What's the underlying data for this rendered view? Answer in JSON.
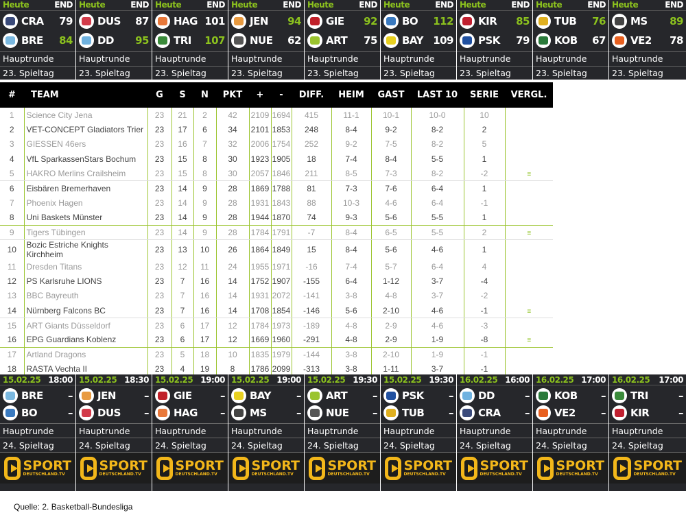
{
  "colors": {
    "accent": "#8cc21e",
    "panel": "#26272b",
    "brand": "#f3b71a"
  },
  "results": [
    {
      "status_left": "Heute",
      "status_right": "END",
      "home": "CRA",
      "home_score": "79",
      "away": "BRE",
      "away_score": "84",
      "winner": "away",
      "round": "Hauptrunde",
      "day": "23. Spieltag",
      "c1": "#3a4a7a",
      "c2": "#7ab8e0"
    },
    {
      "status_left": "Heute",
      "status_right": "END",
      "home": "DUS",
      "home_score": "87",
      "away": "DD",
      "away_score": "95",
      "winner": "away",
      "round": "Hauptrunde",
      "day": "23. Spieltag",
      "c1": "#d23b4a",
      "c2": "#6fb2e0"
    },
    {
      "status_left": "Heute",
      "status_right": "END",
      "home": "HAG",
      "home_score": "101",
      "away": "TRI",
      "away_score": "107",
      "winner": "away",
      "round": "Hauptrunde",
      "day": "23. Spieltag",
      "c1": "#e8783a",
      "c2": "#3a8a3a"
    },
    {
      "status_left": "Heute",
      "status_right": "END",
      "home": "JEN",
      "home_score": "94",
      "away": "NUE",
      "away_score": "62",
      "winner": "home",
      "round": "Hauptrunde",
      "day": "23. Spieltag",
      "c1": "#e89a40",
      "c2": "#555555"
    },
    {
      "status_left": "Heute",
      "status_right": "END",
      "home": "GIE",
      "home_score": "92",
      "away": "ART",
      "away_score": "75",
      "winner": "home",
      "round": "Hauptrunde",
      "day": "23. Spieltag",
      "c1": "#c0202a",
      "c2": "#9bc42e"
    },
    {
      "status_left": "Heute",
      "status_right": "END",
      "home": "BO",
      "home_score": "112",
      "away": "BAY",
      "away_score": "109",
      "winner": "home",
      "round": "Hauptrunde",
      "day": "23. Spieltag",
      "c1": "#3a7ac0",
      "c2": "#e8d020"
    },
    {
      "status_left": "Heute",
      "status_right": "END",
      "home": "KIR",
      "home_score": "85",
      "away": "PSK",
      "away_score": "79",
      "winner": "home",
      "round": "Hauptrunde",
      "day": "23. Spieltag",
      "c1": "#c02030",
      "c2": "#2050a0"
    },
    {
      "status_left": "Heute",
      "status_right": "END",
      "home": "TUB",
      "home_score": "76",
      "away": "KOB",
      "away_score": "67",
      "winner": "home",
      "round": "Hauptrunde",
      "day": "23. Spieltag",
      "c1": "#e0b020",
      "c2": "#2a7a3a"
    },
    {
      "status_left": "Heute",
      "status_right": "END",
      "home": "MS",
      "home_score": "89",
      "away": "VE2",
      "away_score": "78",
      "winner": "home",
      "round": "Hauptrunde",
      "day": "23. Spieltag",
      "c1": "#444444",
      "c2": "#e86020"
    }
  ],
  "fixtures": [
    {
      "date": "15.02.25",
      "time": "18:00",
      "home": "BRE",
      "away": "BO",
      "home_score": "–",
      "away_score": "–",
      "round": "Hauptrunde",
      "day": "24. Spieltag",
      "c1": "#7ab8e0",
      "c2": "#3a7ac0"
    },
    {
      "date": "15.02.25",
      "time": "18:30",
      "home": "JEN",
      "away": "DUS",
      "home_score": "–",
      "away_score": "–",
      "round": "Hauptrunde",
      "day": "24. Spieltag",
      "c1": "#e89a40",
      "c2": "#d23b4a"
    },
    {
      "date": "15.02.25",
      "time": "19:00",
      "home": "GIE",
      "away": "HAG",
      "home_score": "–",
      "away_score": "–",
      "round": "Hauptrunde",
      "day": "24. Spieltag",
      "c1": "#c0202a",
      "c2": "#e8783a"
    },
    {
      "date": "15.02.25",
      "time": "19:00",
      "home": "BAY",
      "away": "MS",
      "home_score": "–",
      "away_score": "–",
      "round": "Hauptrunde",
      "day": "24. Spieltag",
      "c1": "#e8d020",
      "c2": "#444444"
    },
    {
      "date": "15.02.25",
      "time": "19:30",
      "home": "ART",
      "away": "NUE",
      "home_score": "–",
      "away_score": "–",
      "round": "Hauptrunde",
      "day": "24. Spieltag",
      "c1": "#9bc42e",
      "c2": "#555555"
    },
    {
      "date": "15.02.25",
      "time": "19:30",
      "home": "PSK",
      "away": "TUB",
      "home_score": "–",
      "away_score": "–",
      "round": "Hauptrunde",
      "day": "24. Spieltag",
      "c1": "#2050a0",
      "c2": "#e0b020"
    },
    {
      "date": "16.02.25",
      "time": "16:00",
      "home": "DD",
      "away": "CRA",
      "home_score": "–",
      "away_score": "–",
      "round": "Hauptrunde",
      "day": "24. Spieltag",
      "c1": "#6fb2e0",
      "c2": "#3a4a7a"
    },
    {
      "date": "16.02.25",
      "time": "17:00",
      "home": "KOB",
      "away": "VE2",
      "home_score": "–",
      "away_score": "–",
      "round": "Hauptrunde",
      "day": "24. Spieltag",
      "c1": "#2a7a3a",
      "c2": "#e86020"
    },
    {
      "date": "16.02.25",
      "time": "17:00",
      "home": "TRI",
      "away": "KIR",
      "home_score": "–",
      "away_score": "–",
      "round": "Hauptrunde",
      "day": "24. Spieltag",
      "c1": "#3a8a3a",
      "c2": "#c02030"
    }
  ],
  "broadcaster": {
    "name": "SPORT",
    "sub": "DEUTSCHLAND.TV"
  },
  "table": {
    "headers": [
      "#",
      "TEAM",
      "G",
      "S",
      "N",
      "PKT",
      "+",
      "-",
      "DIFF.",
      "HEIM",
      "GAST",
      "LAST 10",
      "SERIE",
      "VERGL."
    ],
    "compare_icon": "compare-icon",
    "rows": [
      [
        "1",
        "Science City Jena",
        "23",
        "21",
        "2",
        "42",
        "2109",
        "1694",
        "415",
        "11-1",
        "10-1",
        "10-0",
        "10",
        ""
      ],
      [
        "2",
        "VET-CONCEPT Gladiators Trier",
        "23",
        "17",
        "6",
        "34",
        "2101",
        "1853",
        "248",
        "8-4",
        "9-2",
        "8-2",
        "2",
        ""
      ],
      [
        "3",
        "GIESSEN 46ers",
        "23",
        "16",
        "7",
        "32",
        "2006",
        "1754",
        "252",
        "9-2",
        "7-5",
        "8-2",
        "5",
        ""
      ],
      [
        "4",
        "VfL SparkassenStars Bochum",
        "23",
        "15",
        "8",
        "30",
        "1923",
        "1905",
        "18",
        "7-4",
        "8-4",
        "5-5",
        "1",
        ""
      ],
      [
        "5",
        "HAKRO Merlins Crailsheim",
        "23",
        "15",
        "8",
        "30",
        "2057",
        "1846",
        "211",
        "8-5",
        "7-3",
        "8-2",
        "-2",
        "≡"
      ],
      [
        "6",
        "Eisbären Bremerhaven",
        "23",
        "14",
        "9",
        "28",
        "1869",
        "1788",
        "81",
        "7-3",
        "7-6",
        "6-4",
        "1",
        ""
      ],
      [
        "7",
        "Phoenix Hagen",
        "23",
        "14",
        "9",
        "28",
        "1931",
        "1843",
        "88",
        "10-3",
        "4-6",
        "6-4",
        "-1",
        ""
      ],
      [
        "8",
        "Uni Baskets Münster",
        "23",
        "14",
        "9",
        "28",
        "1944",
        "1870",
        "74",
        "9-3",
        "5-6",
        "5-5",
        "1",
        ""
      ],
      [
        "9",
        "Tigers Tübingen",
        "23",
        "14",
        "9",
        "28",
        "1784",
        "1791",
        "-7",
        "8-4",
        "6-5",
        "5-5",
        "2",
        "≡"
      ],
      [
        "10",
        "Bozic Estriche Knights Kirchheim",
        "23",
        "13",
        "10",
        "26",
        "1864",
        "1849",
        "15",
        "8-4",
        "5-6",
        "4-6",
        "1",
        ""
      ],
      [
        "11",
        "Dresden Titans",
        "23",
        "12",
        "11",
        "24",
        "1955",
        "1971",
        "-16",
        "7-4",
        "5-7",
        "6-4",
        "4",
        ""
      ],
      [
        "12",
        "PS Karlsruhe LIONS",
        "23",
        "7",
        "16",
        "14",
        "1752",
        "1907",
        "-155",
        "6-4",
        "1-12",
        "3-7",
        "-4",
        ""
      ],
      [
        "13",
        "BBC Bayreuth",
        "23",
        "7",
        "16",
        "14",
        "1931",
        "2072",
        "-141",
        "3-8",
        "4-8",
        "3-7",
        "-2",
        ""
      ],
      [
        "14",
        "Nürnberg Falcons BC",
        "23",
        "7",
        "16",
        "14",
        "1708",
        "1854",
        "-146",
        "5-6",
        "2-10",
        "4-6",
        "-1",
        "≡"
      ],
      [
        "15",
        "ART Giants Düsseldorf",
        "23",
        "6",
        "17",
        "12",
        "1784",
        "1973",
        "-189",
        "4-8",
        "2-9",
        "4-6",
        "-3",
        ""
      ],
      [
        "16",
        "EPG Guardians Koblenz",
        "23",
        "6",
        "17",
        "12",
        "1669",
        "1960",
        "-291",
        "4-8",
        "2-9",
        "1-9",
        "-8",
        "≡"
      ],
      [
        "17",
        "Artland Dragons",
        "23",
        "5",
        "18",
        "10",
        "1835",
        "1979",
        "-144",
        "3-8",
        "2-10",
        "1-9",
        "-1",
        ""
      ],
      [
        "18",
        "RASTA Vechta II",
        "23",
        "4",
        "19",
        "8",
        "1786",
        "2099",
        "-313",
        "3-8",
        "1-11",
        "3-7",
        "-1",
        ""
      ]
    ]
  },
  "source": "Quelle: 2. Basketball-Bundesliga"
}
